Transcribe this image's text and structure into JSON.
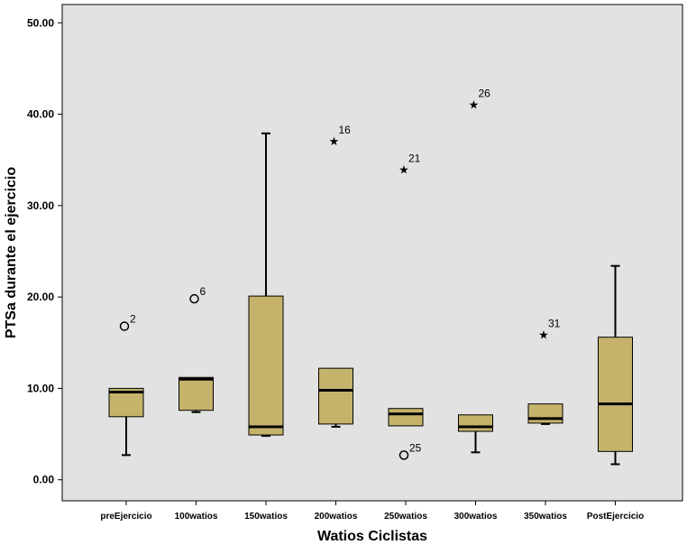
{
  "chart_data": {
    "type": "boxplot",
    "xlabel": "Watios Ciclistas",
    "ylabel": "PTSa durante el ejercicio",
    "ylim": [
      -2.3,
      52
    ],
    "yticks": [
      "0.00",
      "10.00",
      "20.00",
      "30.00",
      "40.00",
      "50.00"
    ],
    "ytick_values": [
      0,
      10,
      20,
      30,
      40,
      50
    ],
    "grid": false,
    "colors": {
      "plot_bg": "#e2e2e2",
      "box_fill": "#c5b36b",
      "stroke": "#000000"
    },
    "categories": [
      "preEjercicio",
      "100watios",
      "150watios",
      "200watios",
      "250watios",
      "300watios",
      "350watios",
      "PostEjercicio"
    ],
    "boxes": [
      {
        "category": "preEjercicio",
        "min": 2.7,
        "q1": 6.9,
        "median": 9.6,
        "q3": 10.0,
        "max": 10.0,
        "outliers": [
          {
            "value": 16.8,
            "label": "2",
            "marker": "circle"
          }
        ]
      },
      {
        "category": "100watios",
        "min": 7.4,
        "q1": 7.6,
        "median": 11.0,
        "q3": 11.2,
        "max": 11.2,
        "outliers": [
          {
            "value": 19.8,
            "label": "6",
            "marker": "circle"
          }
        ]
      },
      {
        "category": "150watios",
        "min": 4.8,
        "q1": 4.9,
        "median": 5.8,
        "q3": 20.1,
        "max": 37.9,
        "outliers": []
      },
      {
        "category": "200watios",
        "min": 5.8,
        "q1": 6.1,
        "median": 9.8,
        "q3": 12.2,
        "max": 12.2,
        "outliers": [
          {
            "value": 37.2,
            "label": "16",
            "marker": "star"
          }
        ]
      },
      {
        "category": "250watios",
        "min": 5.9,
        "q1": 5.9,
        "median": 7.2,
        "q3": 7.8,
        "max": 7.8,
        "outliers": [
          {
            "value": 2.7,
            "label": "25",
            "marker": "circle"
          },
          {
            "value": 34.1,
            "label": "21",
            "marker": "star"
          }
        ]
      },
      {
        "category": "300watios",
        "min": 3.0,
        "q1": 5.3,
        "median": 5.8,
        "q3": 7.1,
        "max": 7.1,
        "outliers": [
          {
            "value": 41.2,
            "label": "26",
            "marker": "star"
          }
        ]
      },
      {
        "category": "350watios",
        "min": 6.1,
        "q1": 6.2,
        "median": 6.7,
        "q3": 8.3,
        "max": 8.3,
        "outliers": [
          {
            "value": 16.0,
            "label": "31",
            "marker": "star"
          }
        ]
      },
      {
        "category": "PostEjercicio",
        "min": 1.7,
        "q1": 3.1,
        "median": 8.3,
        "q3": 15.6,
        "max": 23.4,
        "outliers": []
      }
    ]
  }
}
